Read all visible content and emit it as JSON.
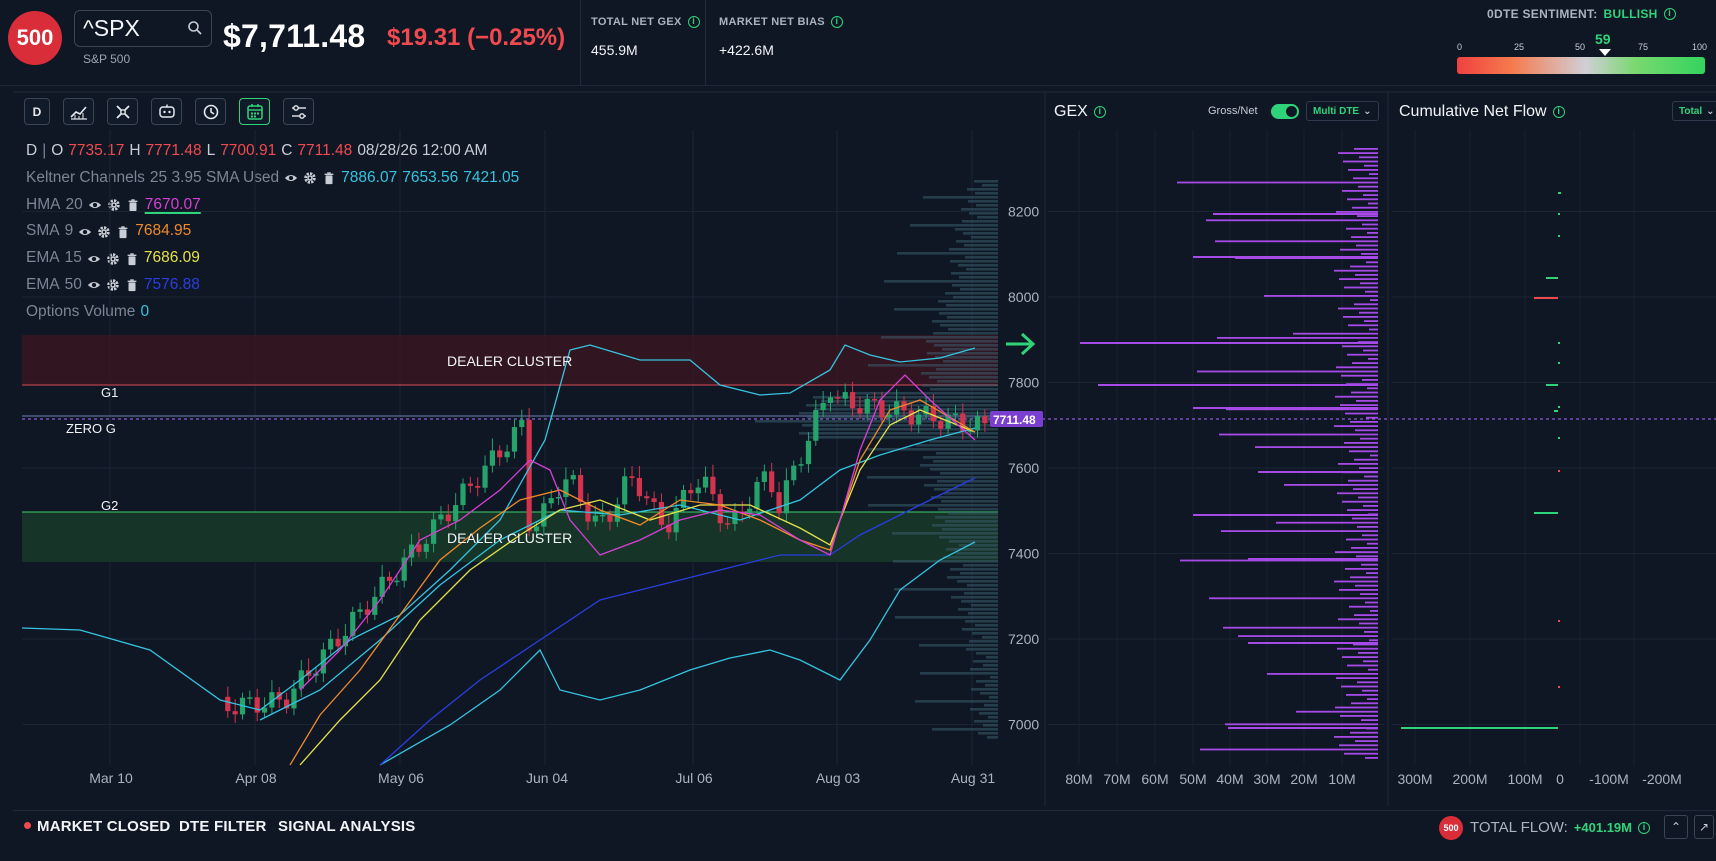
{
  "header": {
    "logo": "500",
    "ticker": "^SPX",
    "ticker_name": "S&P 500",
    "price": "$7,711.48",
    "change": "$19.31 (−0.25%)",
    "total_net_gex_label": "TOTAL NET GEX",
    "total_net_gex_value": "455.9M",
    "market_net_bias_label": "MARKET NET BIAS",
    "market_net_bias_value": "+422.6M",
    "sentiment_label": "0DTE SENTIMENT:",
    "sentiment_state": "BULLISH",
    "sentiment_value": "59",
    "sentiment_ticks": [
      "0",
      "25",
      "50",
      "75",
      "100"
    ],
    "sentiment_level_pct": 59
  },
  "toolbar": {
    "timeframe": "D",
    "tools": [
      "indicators-icon",
      "drawing-tools-icon",
      "ai-assistant-icon",
      "replay-history-icon",
      "calendar-icon",
      "settings-sliders-icon"
    ]
  },
  "legend": {
    "ohlc": {
      "tf": "D",
      "o_label": "O",
      "o": "7735.17",
      "h_label": "H",
      "h": "7771.48",
      "l_label": "L",
      "l": "7700.91",
      "c_label": "C",
      "c": "7711.48",
      "datetime": "08/28/26 12:00 AM"
    },
    "keltner": {
      "name": "Keltner Channels",
      "params": "25 3.95 SMA Used",
      "v1": "7886.07",
      "v2": "7653.56",
      "v3": "7421.05",
      "color": "#35c4e0"
    },
    "hma": {
      "name": "HMA",
      "params": "20",
      "value": "7670.07",
      "color": "#d640d6"
    },
    "sma": {
      "name": "SMA",
      "params": "9",
      "value": "7684.95",
      "color": "#f08a2a"
    },
    "ema15": {
      "name": "EMA",
      "params": "15",
      "value": "7686.09",
      "color": "#e6e24a"
    },
    "ema50": {
      "name": "EMA",
      "params": "50",
      "value": "7576.88",
      "color": "#2a3ee0"
    },
    "options_volume": {
      "name": "Options Volume",
      "value": "0"
    }
  },
  "chart": {
    "levels": {
      "dealer_cluster": "DEALER CLUSTER",
      "g1": "G1",
      "zero_g": "ZERO G",
      "g2": "G2",
      "price_tag": "7711.48"
    },
    "y_ticks": [
      "8200",
      "8000",
      "7800",
      "7600",
      "7400",
      "7200",
      "7000"
    ],
    "x_ticks": [
      "Mar 10",
      "Apr 08",
      "May 06",
      "Jun 04",
      "Jul 06",
      "Aug 03",
      "Aug 31"
    ]
  },
  "gex": {
    "title": "GEX",
    "gross_net_label": "Gross/Net",
    "dte_filter": "Multi DTE",
    "x_ticks": [
      "80M",
      "70M",
      "60M",
      "50M",
      "40M",
      "30M",
      "20M",
      "10M"
    ]
  },
  "flow": {
    "title": "Cumulative Net Flow",
    "mode": "Total",
    "x_ticks": [
      "300M",
      "200M",
      "100M",
      "0",
      "-100M",
      "-200M"
    ]
  },
  "footer": {
    "market_status": "MARKET CLOSED",
    "dte_filter": "DTE FILTER",
    "signal_analysis": "SIGNAL ANALYSIS",
    "logo": "500",
    "total_flow_label": "TOTAL FLOW:",
    "total_flow_value": "+401.19M"
  },
  "colors": {
    "background": "#0f1724",
    "accent_green": "#2fd47a",
    "negative_red": "#f04a4f",
    "gex_purple": "#a64be8",
    "keltner": "#35c4e0",
    "up_candle": "#26a26b",
    "down_candle": "#d2334d"
  }
}
